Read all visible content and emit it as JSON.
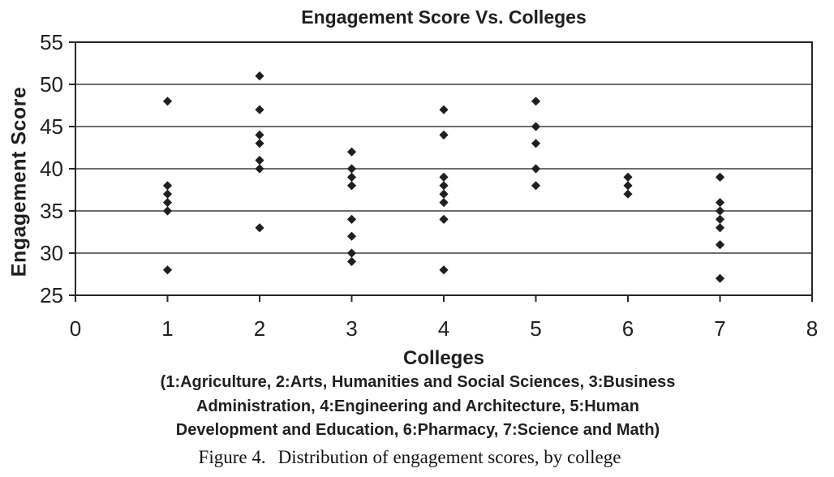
{
  "chart_data": {
    "type": "scatter",
    "title": "Engagement Score Vs. Colleges",
    "xlabel": "Colleges",
    "ylabel": "Engagement Score",
    "xlim": [
      0,
      8
    ],
    "ylim": [
      25,
      55
    ],
    "x_ticks": [
      0,
      1,
      2,
      3,
      4,
      5,
      6,
      7,
      8
    ],
    "y_ticks": [
      55,
      50,
      45,
      40,
      35,
      30,
      25
    ],
    "grid": "horizontal",
    "legend_position": "none",
    "marker": "diamond",
    "series": [
      {
        "name": "1: Agriculture",
        "x": 1,
        "values": [
          48,
          38,
          37,
          36,
          35,
          28
        ]
      },
      {
        "name": "2: Arts, Humanities and Social Sciences",
        "x": 2,
        "values": [
          51,
          47,
          44,
          43,
          41,
          40,
          33
        ]
      },
      {
        "name": "3: Business Administration",
        "x": 3,
        "values": [
          42,
          40,
          39,
          38,
          34,
          32,
          30,
          29
        ]
      },
      {
        "name": "4: Engineering and Architecture",
        "x": 4,
        "values": [
          47,
          44,
          39,
          38,
          37,
          36,
          34,
          28
        ]
      },
      {
        "name": "5: Human Development and Education",
        "x": 5,
        "values": [
          48,
          45,
          43,
          40,
          38
        ]
      },
      {
        "name": "6: Pharmacy",
        "x": 6,
        "values": [
          39,
          38,
          37
        ]
      },
      {
        "name": "7: Science and Math",
        "x": 7,
        "values": [
          39,
          36,
          35,
          34,
          33,
          31,
          27
        ]
      }
    ],
    "caption_lines": [
      "(1:Agriculture, 2:Arts, Humanities and Social Sciences, 3:Business",
      "Administration, 4:Engineering and Architecture, 5:Human",
      "Development and Education, 6:Pharmacy, 7:Science and Math)"
    ],
    "colors": {
      "marker": "#1f1f1f",
      "axis": "#262626",
      "grid": "#3f3f3f",
      "text": "#1f1f1f",
      "background": "#ffffff"
    }
  },
  "figure_caption": {
    "label": "Figure 4.",
    "text": "Distribution of engagement scores, by college"
  }
}
